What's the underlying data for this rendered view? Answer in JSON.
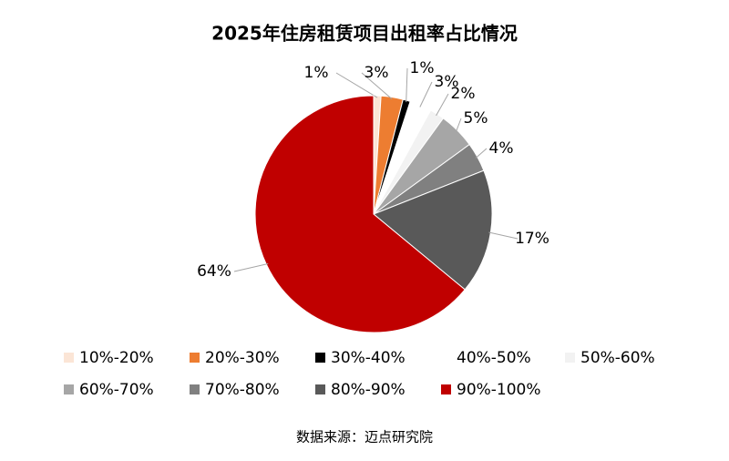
{
  "chart_data": {
    "type": "pie",
    "title": "2025年住房租赁项目出租率占比情况",
    "categories": [
      "10%-20%",
      "20%-30%",
      "30%-40%",
      "40%-50%",
      "50%-60%",
      "60%-70%",
      "70%-80%",
      "80%-90%",
      "90%-100%"
    ],
    "values": [
      1,
      3,
      1,
      3,
      2,
      5,
      4,
      17,
      64
    ],
    "value_labels": [
      "1%",
      "3%",
      "1%",
      "3%",
      "2%",
      "5%",
      "4%",
      "17%",
      "64%"
    ],
    "colors": [
      "#fbe5d6",
      "#ed7d31",
      "#000000",
      "#ffffff",
      "#f2f2f2",
      "#a6a6a6",
      "#808080",
      "#595959",
      "#c00000"
    ],
    "legend": "bottom",
    "source": "数据来源：迈点研究院"
  }
}
